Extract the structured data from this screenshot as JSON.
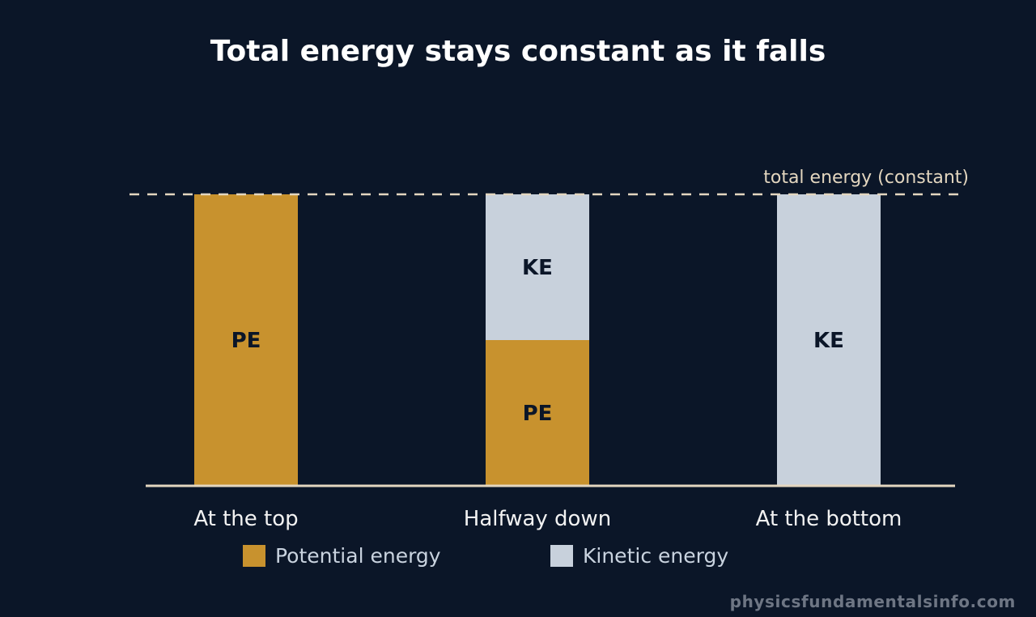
{
  "chart_data": {
    "type": "bar",
    "stacked": true,
    "title": "Total energy stays constant as it falls",
    "categories": [
      "At the top",
      "Halfway down",
      "At the bottom"
    ],
    "series": [
      {
        "name": "Potential energy",
        "short": "PE",
        "color": "#c8922e",
        "values": [
          100,
          50,
          0
        ]
      },
      {
        "name": "Kinetic energy",
        "short": "KE",
        "color": "#c8d1dc",
        "values": [
          0,
          50,
          100
        ]
      }
    ],
    "ylim": [
      0,
      100
    ],
    "reference_line": {
      "label": "total energy (constant)",
      "value": 100
    },
    "grid": false,
    "legend_position": "bottom"
  },
  "colors": {
    "background": "#0b1628",
    "axis": "#e3d6bf",
    "reference_line": "#e3d6bf"
  },
  "watermark": "physicsfundamentalsinfo.com"
}
